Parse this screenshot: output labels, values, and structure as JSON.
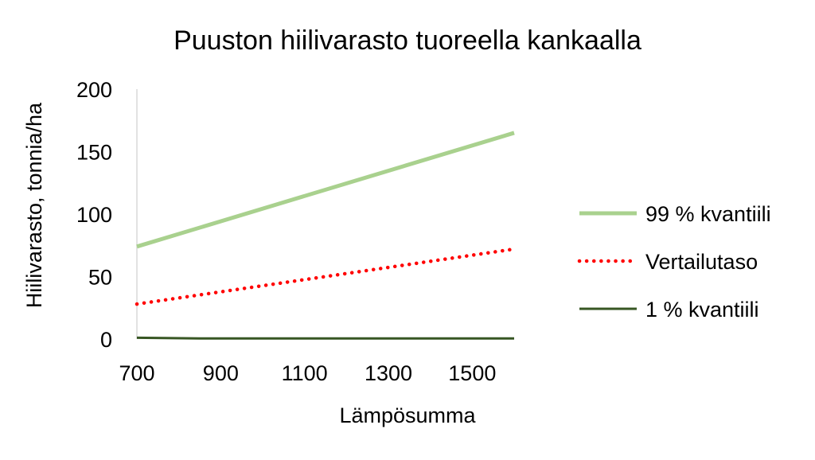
{
  "chart_data": {
    "type": "line",
    "title": "Puuston hiilivarasto tuoreella kankaalla",
    "xlabel": "Lämpösumma",
    "ylabel": "Hiilivarasto, tonnia/ha",
    "xlim": [
      700,
      1600
    ],
    "ylim": [
      0,
      200
    ],
    "xticks": [
      "700",
      "900",
      "1100",
      "1300",
      "1500"
    ],
    "yticks": [
      "0",
      "50",
      "100",
      "150",
      "200"
    ],
    "grid": false,
    "legend": "right",
    "series": [
      {
        "name": "99 % kvantiili",
        "color": "#a9d18e",
        "style": "solid",
        "x": [
          700,
          1600
        ],
        "y": [
          74,
          165
        ]
      },
      {
        "name": "Vertailutaso",
        "color": "#ff0000",
        "style": "dotted",
        "x": [
          700,
          1600
        ],
        "y": [
          28,
          72
        ]
      },
      {
        "name": "1 % kvantiili",
        "color": "#375623",
        "style": "solid",
        "x": [
          700,
          850,
          1600
        ],
        "y": [
          1,
          0.5,
          0.5
        ]
      }
    ]
  }
}
